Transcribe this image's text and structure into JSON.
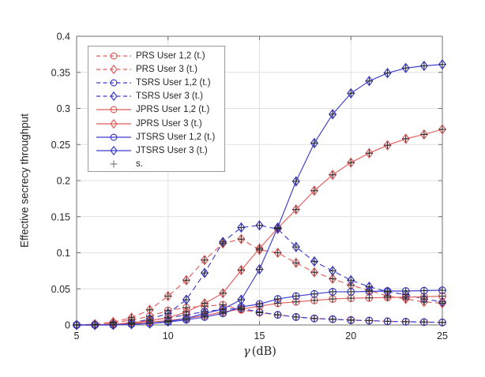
{
  "figure": {
    "background": "#ffffff"
  },
  "chart_data": {
    "type": "line",
    "title": "",
    "xlabel": "γ (dB)",
    "xlabel_gamma": "γ",
    "xlabel_unit": "(dB)",
    "ylabel": "Effective secrecy throughput",
    "xlim": [
      5,
      25
    ],
    "ylim": [
      0,
      0.4
    ],
    "xticks": [
      "5",
      "10",
      "15",
      "20",
      "25"
    ],
    "yticks": [
      "0",
      "0.05",
      "0.1",
      "0.15",
      "0.2",
      "0.25",
      "0.3",
      "0.35",
      "0.4"
    ],
    "grid": true,
    "legend_position": "top-left-inside",
    "colors": {
      "red": "#e25c5c",
      "blue": "#3c3ccf",
      "sim": "#2e2e2e",
      "grid": "#e0e0e0",
      "axis": "#6f6f6f",
      "text": "#262626"
    },
    "x": [
      5,
      6,
      7,
      8,
      9,
      10,
      11,
      12,
      13,
      14,
      15,
      16,
      17,
      18,
      19,
      20,
      21,
      22,
      23,
      24,
      25
    ],
    "series": [
      {
        "name": "PRS User 1,2 (t.)",
        "color": "red",
        "line": "dashed",
        "marker": "circle",
        "values": [
          0,
          0.001,
          0.003,
          0.007,
          0.012,
          0.02,
          0.024,
          0.026,
          0.028,
          0.021,
          0.017,
          0.014,
          0.011,
          0.009,
          0.008,
          0.007,
          0.006,
          0.005,
          0.0045,
          0.004,
          0.0035
        ]
      },
      {
        "name": "PRS User 3 (t.)",
        "color": "red",
        "line": "dashed",
        "marker": "diamond",
        "values": [
          0,
          0.001,
          0.004,
          0.01,
          0.021,
          0.04,
          0.062,
          0.09,
          0.113,
          0.119,
          0.104,
          0.1,
          0.086,
          0.073,
          0.064,
          0.055,
          0.048,
          0.04,
          0.036,
          0.032,
          0.03
        ]
      },
      {
        "name": "TSRS User 1,2 (t.)",
        "color": "blue",
        "line": "dashed",
        "marker": "circle",
        "values": [
          0,
          0,
          0.001,
          0.003,
          0.006,
          0.01,
          0.014,
          0.0185,
          0.0215,
          0.023,
          0.018,
          0.014,
          0.011,
          0.009,
          0.008,
          0.0065,
          0.006,
          0.005,
          0.0045,
          0.004,
          0.0035
        ]
      },
      {
        "name": "TSRS User 3 (t.)",
        "color": "blue",
        "line": "dashed",
        "marker": "diamond",
        "values": [
          0,
          0,
          0.001,
          0.003,
          0.008,
          0.016,
          0.035,
          0.072,
          0.115,
          0.135,
          0.138,
          0.133,
          0.108,
          0.088,
          0.075,
          0.062,
          0.053,
          0.046,
          0.042,
          0.036,
          0.032
        ]
      },
      {
        "name": "JPRS User 1,2 (t.)",
        "color": "red",
        "line": "solid",
        "marker": "circle",
        "values": [
          0,
          0,
          0.001,
          0.002,
          0.004,
          0.006,
          0.009,
          0.013,
          0.018,
          0.022,
          0.026,
          0.03,
          0.032,
          0.034,
          0.036,
          0.037,
          0.0375,
          0.038,
          0.0385,
          0.039,
          0.04
        ]
      },
      {
        "name": "JPRS User 3 (t.)",
        "color": "red",
        "line": "solid",
        "marker": "diamond",
        "values": [
          0,
          0,
          0.001,
          0.003,
          0.006,
          0.01,
          0.018,
          0.03,
          0.044,
          0.076,
          0.106,
          0.134,
          0.16,
          0.186,
          0.208,
          0.225,
          0.238,
          0.249,
          0.258,
          0.264,
          0.271
        ]
      },
      {
        "name": "JTSRS User 1,2 (t.)",
        "color": "blue",
        "line": "solid",
        "marker": "circle",
        "values": [
          0,
          0,
          0,
          0.001,
          0.002,
          0.004,
          0.007,
          0.011,
          0.016,
          0.025,
          0.029,
          0.036,
          0.04,
          0.043,
          0.046,
          0.046,
          0.0465,
          0.047,
          0.047,
          0.0475,
          0.048
        ]
      },
      {
        "name": "JTSRS User 3 (t.)",
        "color": "blue",
        "line": "solid",
        "marker": "diamond",
        "values": [
          0,
          0,
          0,
          0.001,
          0.002,
          0.005,
          0.009,
          0.016,
          0.022,
          0.035,
          0.077,
          0.135,
          0.199,
          0.252,
          0.292,
          0.321,
          0.338,
          0.349,
          0.356,
          0.359,
          0.361
        ]
      }
    ],
    "sim_label": "s.",
    "sim_marker": "plus"
  }
}
